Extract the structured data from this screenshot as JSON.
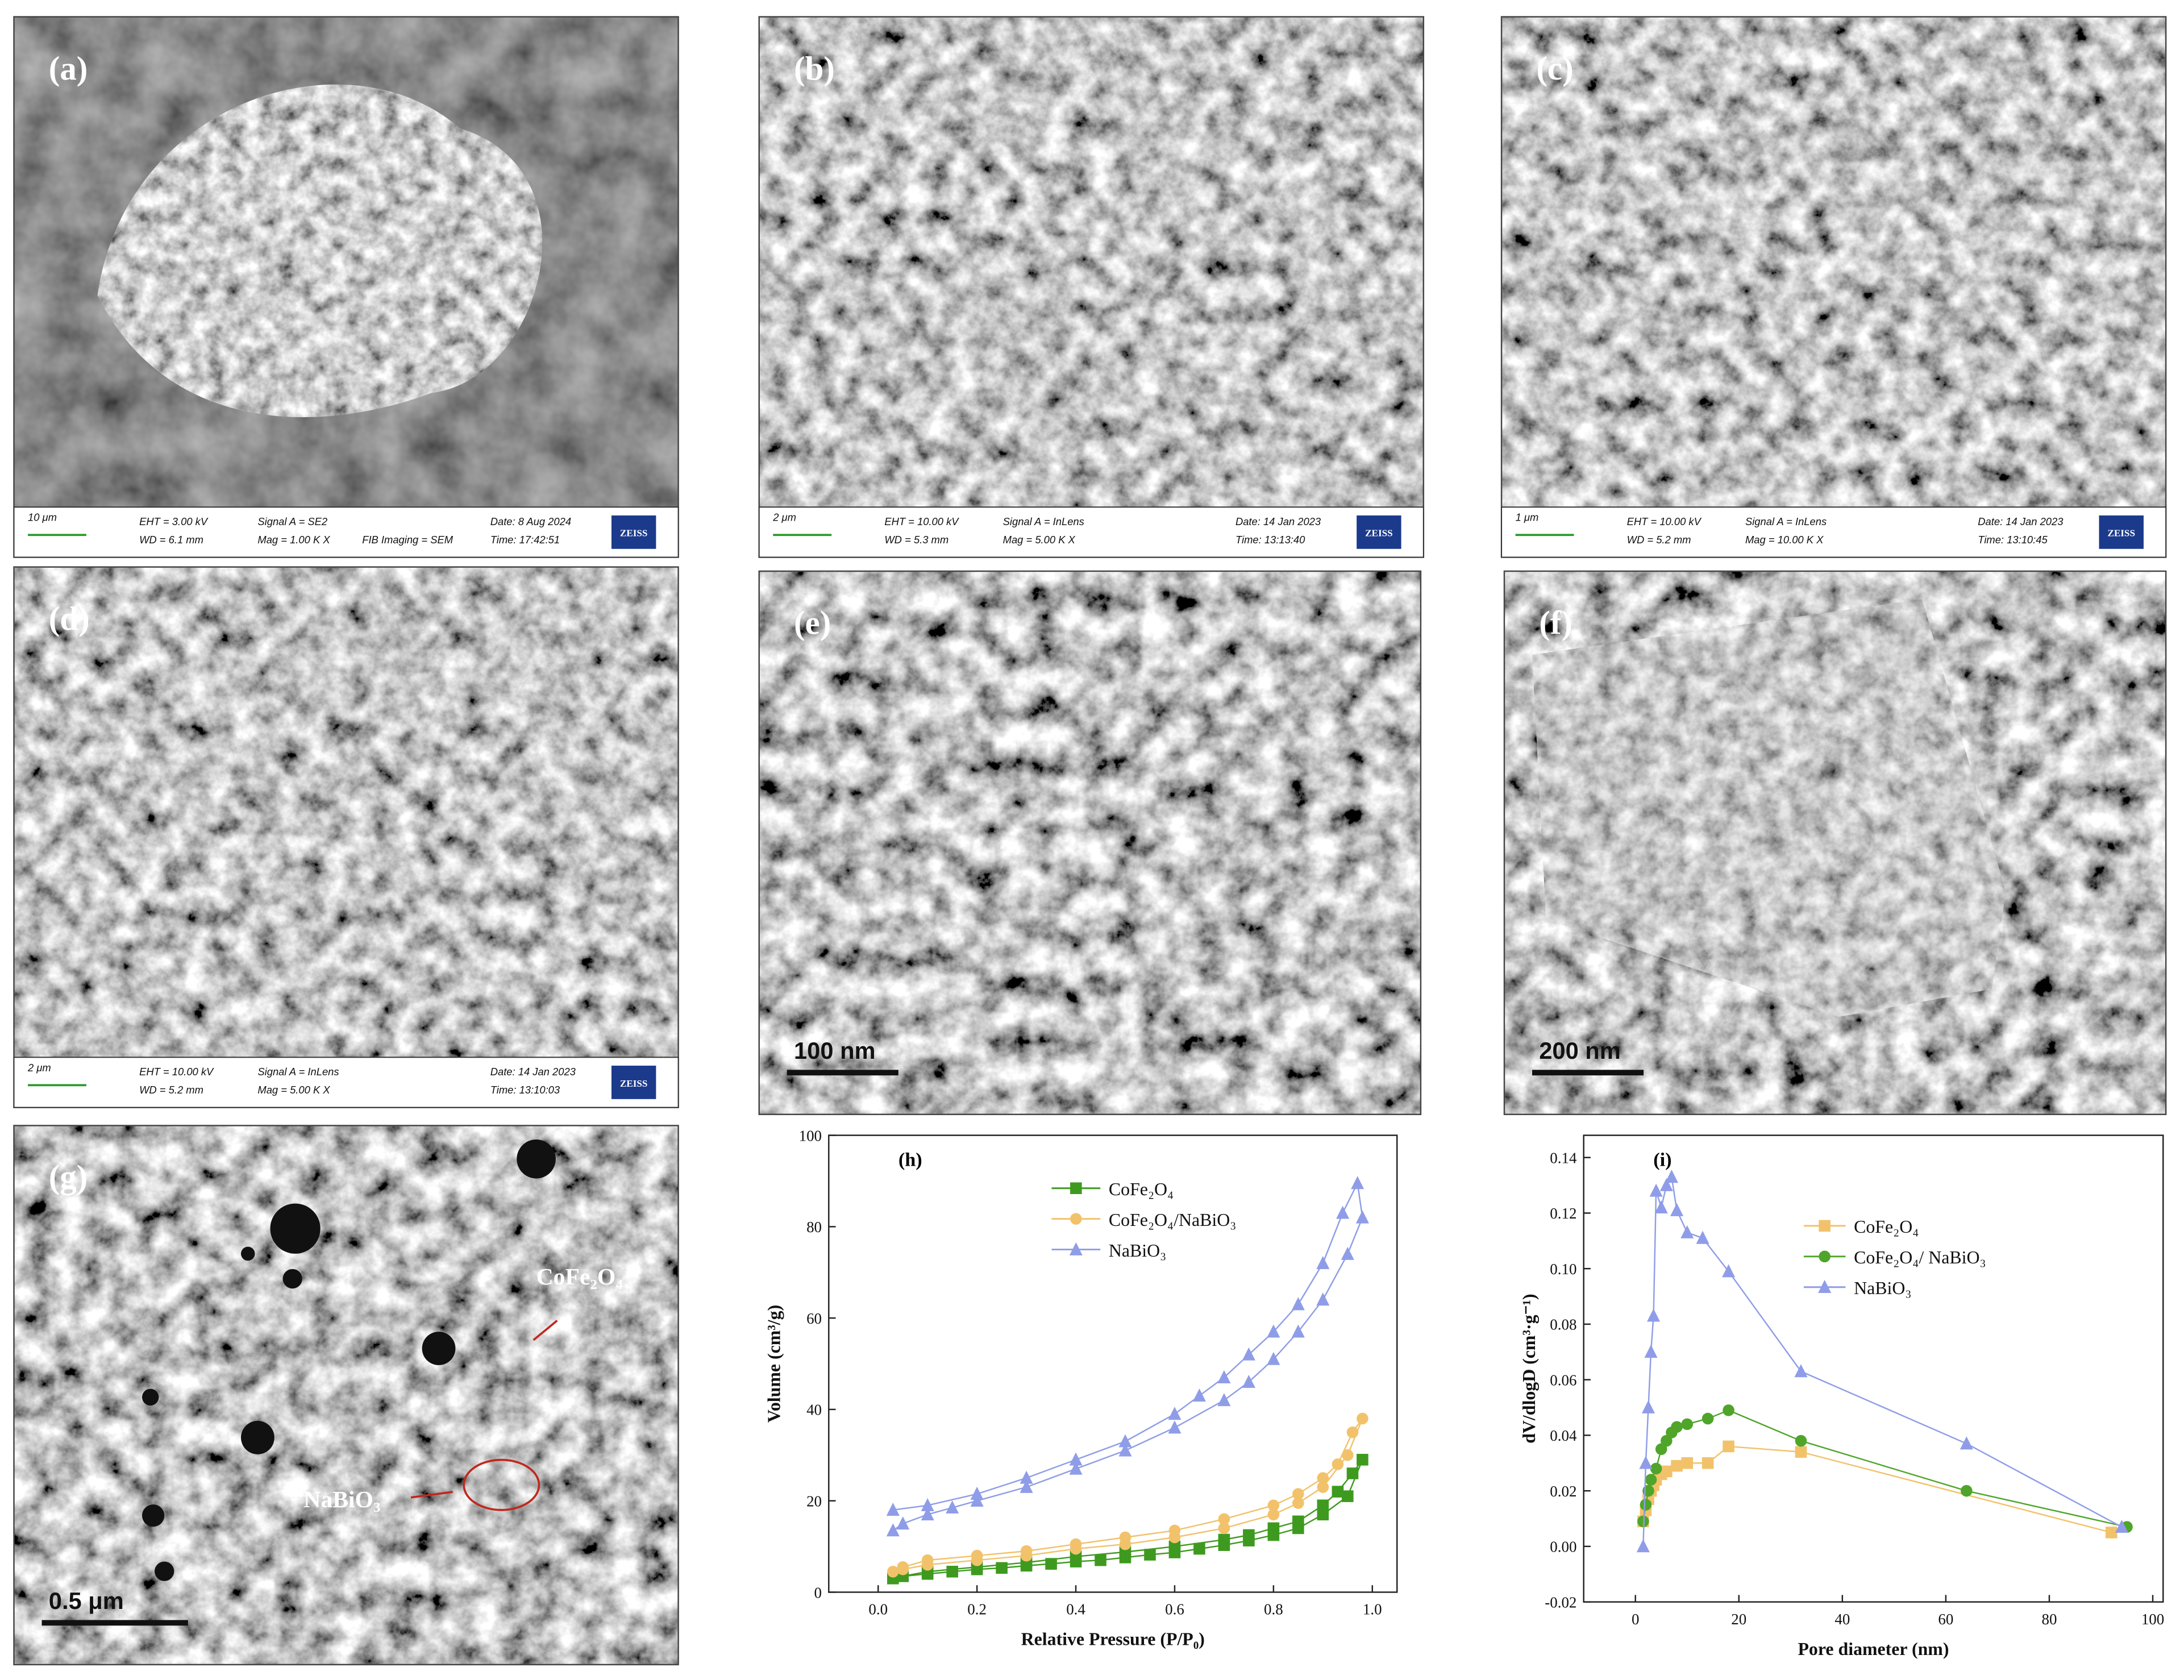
{
  "micrographs": [
    {
      "label": "(a)",
      "scale_bar": "10 μm",
      "info": [
        [
          "EHT = 3.00 kV",
          "Signal A = SE2",
          "Date: 8 Aug 2024"
        ],
        [
          "WD = 6.1 mm",
          "Mag = 1.00 K X",
          "FIB Imaging = SEM",
          "Time: 17:42:51"
        ]
      ],
      "logo": "ZEISS"
    },
    {
      "label": "(b)",
      "scale_bar": "2 μm",
      "info": [
        [
          "EHT = 10.00 kV",
          "Signal A = InLens",
          "Date: 14 Jan 2023"
        ],
        [
          "WD = 5.3 mm",
          "Mag = 5.00 K X",
          "Time: 13:13:40"
        ]
      ],
      "logo": "ZEISS"
    },
    {
      "label": "(c)",
      "scale_bar": "1 μm",
      "info": [
        [
          "EHT = 10.00 kV",
          "Signal A = InLens",
          "Date: 14 Jan 2023"
        ],
        [
          "WD = 5.2 mm",
          "Mag = 10.00 K X",
          "Time: 13:10:45"
        ]
      ],
      "logo": "ZEISS"
    },
    {
      "label": "(d)",
      "scale_bar": "2 μm",
      "info": [
        [
          "EHT = 10.00 kV",
          "Signal A = InLens",
          "Date: 14 Jan 2023"
        ],
        [
          "WD = 5.2 mm",
          "Mag = 5.00 K X",
          "Time: 13:10:03"
        ]
      ],
      "logo": "ZEISS"
    },
    {
      "label": "(e)",
      "scale_bar": "100 nm"
    },
    {
      "label": "(f)",
      "scale_bar": "200 nm"
    },
    {
      "label": "(g)",
      "scale_bar": "0.5 μm",
      "annotations": [
        "CoFe₂O₄",
        "NaBiO₃"
      ]
    }
  ],
  "chart_data": [
    {
      "type": "line",
      "title": "(h)",
      "x_label": "Relative Pressure (P/P₀)",
      "y_label": "Volume (cm³/g)",
      "xlim": [
        -0.1,
        1.05
      ],
      "ylim": [
        0,
        100
      ],
      "xticks": [
        {
          "value": 0,
          "label": "0.0"
        },
        0.2,
        0.4,
        0.6,
        0.8,
        {
          "value": 1,
          "label": "1.0"
        }
      ],
      "yticks": [
        0,
        20,
        40,
        60,
        80,
        100
      ],
      "series": [
        {
          "name": "CoFe₂O₄",
          "color": "#3e9a1f",
          "marker": "square",
          "x": [
            0.03,
            0.05,
            0.1,
            0.15,
            0.2,
            0.25,
            0.3,
            0.35,
            0.4,
            0.45,
            0.5,
            0.55,
            0.6,
            0.65,
            0.7,
            0.75,
            0.8,
            0.85,
            0.9,
            0.95,
            0.98,
            0.96,
            0.93,
            0.9,
            0.85,
            0.8,
            0.75,
            0.7,
            0.6,
            0.5,
            0.4,
            0.3,
            0.2,
            0.1,
            0.05
          ],
          "values": [
            3,
            3.5,
            4,
            4.5,
            5,
            5.3,
            5.8,
            6.2,
            6.7,
            7,
            7.6,
            8.2,
            8.7,
            9.5,
            10.3,
            11.3,
            12.5,
            14,
            17,
            21,
            29,
            26,
            22,
            19,
            15.5,
            14,
            12.5,
            11.5,
            10,
            8.8,
            7.8,
            6.5,
            5.5,
            4.5,
            3.5
          ]
        },
        {
          "name": "CoFe₂O₄/NaBiO₃",
          "color": "#f2c26b",
          "marker": "circle",
          "x": [
            0.03,
            0.05,
            0.1,
            0.2,
            0.3,
            0.4,
            0.5,
            0.6,
            0.7,
            0.8,
            0.85,
            0.9,
            0.95,
            0.98,
            0.96,
            0.93,
            0.9,
            0.85,
            0.8,
            0.7,
            0.6,
            0.5,
            0.4,
            0.3,
            0.2,
            0.1,
            0.05
          ],
          "values": [
            4.5,
            5,
            6,
            7,
            8,
            9.5,
            10.5,
            12,
            14,
            17,
            19.5,
            23,
            30,
            38,
            35,
            28,
            25,
            21.5,
            19,
            16,
            13.5,
            12,
            10.5,
            9,
            8,
            7,
            5.5
          ]
        },
        {
          "name": "NaBiO₃",
          "color": "#8f9de8",
          "marker": "triangle",
          "x": [
            0.03,
            0.05,
            0.1,
            0.15,
            0.2,
            0.3,
            0.4,
            0.5,
            0.6,
            0.7,
            0.75,
            0.8,
            0.85,
            0.9,
            0.95,
            0.98,
            0.97,
            0.94,
            0.9,
            0.85,
            0.8,
            0.75,
            0.7,
            0.65,
            0.6,
            0.5,
            0.4,
            0.3,
            0.2,
            0.1,
            0.03
          ],
          "values": [
            13.5,
            15,
            17,
            18.5,
            20,
            23,
            27,
            31,
            36,
            42,
            46,
            51,
            57,
            64,
            74,
            82,
            89.5,
            83,
            72,
            63,
            57,
            52,
            47,
            43,
            39,
            33,
            29,
            25,
            21.5,
            19,
            18
          ]
        }
      ]
    },
    {
      "type": "line",
      "title": "(i)",
      "x_label": "Pore diameter (nm)",
      "y_label": "dV/dlogD (cm³·g⁻¹)",
      "xlim": [
        -10,
        102
      ],
      "ylim": [
        -0.02,
        0.148
      ],
      "xticks": [
        0,
        20,
        40,
        60,
        80,
        100
      ],
      "yticks": [
        -0.02,
        {
          "value": 0,
          "label": "0.00"
        },
        0.02,
        0.04,
        0.06,
        0.08,
        {
          "value": 0.1,
          "label": "0.10"
        },
        0.12,
        0.14
      ],
      "series": [
        {
          "name": "CoFe₂O₄",
          "color": "#f2c26b",
          "marker": "square",
          "x": [
            1.5,
            2,
            2.5,
            3,
            3.5,
            4,
            5,
            6,
            8,
            10,
            14,
            18,
            32,
            92
          ],
          "values": [
            0.009,
            0.013,
            0.017,
            0.02,
            0.022,
            0.024,
            0.026,
            0.027,
            0.029,
            0.03,
            0.03,
            0.036,
            0.034,
            0.005
          ]
        },
        {
          "name": "CoFe₂O₄/ NaBiO₃",
          "color": "#4fa52a",
          "marker": "circle",
          "x": [
            1.5,
            2,
            2.5,
            3,
            4,
            5,
            6,
            7,
            8,
            10,
            14,
            18,
            32,
            64,
            95
          ],
          "values": [
            0.009,
            0.015,
            0.02,
            0.024,
            0.028,
            0.035,
            0.038,
            0.041,
            0.043,
            0.044,
            0.046,
            0.049,
            0.038,
            0.02,
            0.007
          ]
        },
        {
          "name": "NaBiO₃",
          "color": "#8f9de8",
          "marker": "triangle",
          "x": [
            1.5,
            2,
            2.5,
            3,
            3.5,
            4,
            5,
            6,
            7,
            8,
            10,
            13,
            18,
            32,
            64,
            94
          ],
          "values": [
            0,
            0.03,
            0.05,
            0.07,
            0.083,
            0.128,
            0.122,
            0.13,
            0.133,
            0.121,
            0.113,
            0.111,
            0.099,
            0.063,
            0.037,
            0.007
          ]
        }
      ]
    }
  ]
}
